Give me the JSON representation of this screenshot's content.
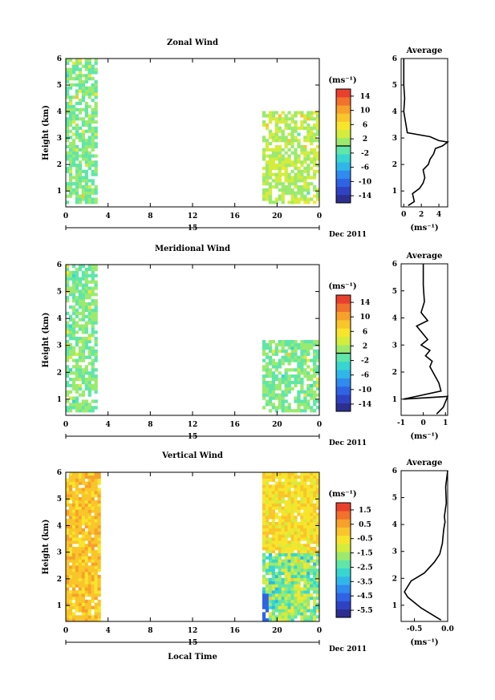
{
  "panels": [
    {
      "title": "Zonal Wind",
      "ylabel": "Height (km)",
      "y_ticks": [
        "1",
        "2",
        "3",
        "4",
        "5",
        "6"
      ],
      "x_ticks": [
        "0",
        "4",
        "8",
        "12",
        "16",
        "20",
        "0"
      ],
      "day_label": "15",
      "date_label": "Dec 2011",
      "xlabel": "",
      "colorbar": {
        "unit": "(ms⁻¹)",
        "ticks": [
          "14",
          "10",
          "6",
          "2",
          "-2",
          "-6",
          "-10",
          "-14"
        ]
      },
      "profile": {
        "title": "Average",
        "x_ticks": [
          "0",
          "2",
          "4"
        ],
        "y_ticks": [
          "1",
          "2",
          "3",
          "4",
          "5",
          "6"
        ],
        "xlabel": "(ms⁻¹)"
      }
    },
    {
      "title": "Meridional Wind",
      "ylabel": "Height (km)",
      "y_ticks": [
        "1",
        "2",
        "3",
        "4",
        "5",
        "6"
      ],
      "x_ticks": [
        "0",
        "4",
        "8",
        "12",
        "16",
        "20",
        "0"
      ],
      "day_label": "15",
      "date_label": "Dec 2011",
      "xlabel": "",
      "colorbar": {
        "unit": "(ms⁻¹)",
        "ticks": [
          "14",
          "10",
          "6",
          "2",
          "-2",
          "-6",
          "-10",
          "-14"
        ]
      },
      "profile": {
        "title": "Average",
        "x_ticks": [
          "-1",
          "0",
          "1"
        ],
        "y_ticks": [
          "1",
          "2",
          "3",
          "4",
          "5",
          "6"
        ],
        "xlabel": "(ms⁻¹)"
      }
    },
    {
      "title": "Vertical Wind",
      "ylabel": "Height (km)",
      "y_ticks": [
        "1",
        "2",
        "3",
        "4",
        "5",
        "6"
      ],
      "x_ticks": [
        "0",
        "4",
        "8",
        "12",
        "16",
        "20",
        "0"
      ],
      "day_label": "15",
      "date_label": "Dec 2011",
      "xlabel": "Local Time",
      "colorbar": {
        "unit": "(ms⁻¹)",
        "ticks": [
          "1.5",
          "0.5",
          "-0.5",
          "-1.5",
          "-2.5",
          "-3.5",
          "-4.5",
          "-5.5"
        ]
      },
      "profile": {
        "title": "Average",
        "x_ticks": [
          "-0.5",
          "0.0"
        ],
        "y_ticks": [
          "1",
          "2",
          "3",
          "4",
          "5",
          "6"
        ],
        "xlabel": "(ms⁻¹)"
      }
    }
  ],
  "chart_data": [
    {
      "type": "heatmap",
      "title": "Zonal Wind",
      "ylabel": "Height (km)",
      "x_unit": "hour local time",
      "xlim": [
        0,
        24
      ],
      "ylim": [
        0.4,
        6.0
      ],
      "date": "15 Dec 2011",
      "data_blocks": [
        {
          "x_range": [
            0,
            3
          ],
          "y_range": [
            0.5,
            6.0
          ],
          "typical_value": 0,
          "note": "patchy, mostly -2 to 2"
        },
        {
          "x_range": [
            18.6,
            24
          ],
          "y_range": [
            0.5,
            4.0
          ],
          "typical_value": 2,
          "note": "mostly 2 to 8, isolated up to 12"
        }
      ],
      "color_scale": {
        "min": -16,
        "max": 16,
        "contour": 0
      }
    },
    {
      "type": "line",
      "title": "Average",
      "xlabel": "(ms⁻¹)",
      "ylabel": "Height (km)",
      "xlim": [
        -0.3,
        5
      ],
      "ylim": [
        0.4,
        6
      ],
      "x": [
        0.5,
        1.2,
        1.0,
        1.8,
        2.2,
        2.4,
        2.2,
        2.8,
        3.0,
        3.4,
        3.6,
        4.4,
        5.0,
        4.0,
        3.0,
        0.4,
        0.2,
        0.0,
        0.1,
        0.0,
        0.0
      ],
      "y": [
        0.45,
        0.6,
        0.9,
        1.1,
        1.3,
        1.5,
        1.8,
        2.0,
        2.2,
        2.4,
        2.6,
        2.7,
        2.85,
        2.9,
        3.05,
        3.2,
        3.6,
        4.0,
        4.5,
        5.0,
        6.0
      ]
    },
    {
      "type": "heatmap",
      "title": "Meridional Wind",
      "ylabel": "Height (km)",
      "x_unit": "hour local time",
      "xlim": [
        0,
        24
      ],
      "ylim": [
        0.4,
        6.0
      ],
      "date": "15 Dec 2011",
      "data_blocks": [
        {
          "x_range": [
            0,
            3
          ],
          "y_range": [
            0.5,
            6.0
          ],
          "typical_value": 0,
          "note": "mostly -2 to 2"
        },
        {
          "x_range": [
            18.6,
            24
          ],
          "y_range": [
            0.5,
            3.2
          ],
          "typical_value": 0,
          "note": "mostly -2 to 4, some -6"
        }
      ],
      "color_scale": {
        "min": -16,
        "max": 16,
        "contour": 0
      }
    },
    {
      "type": "line",
      "title": "Average",
      "xlabel": "(ms⁻¹)",
      "ylabel": "Height (km)",
      "xlim": [
        -1,
        1.1
      ],
      "ylim": [
        0.4,
        6
      ],
      "x": [
        0.6,
        0.9,
        1.1,
        -0.9,
        0.8,
        0.7,
        0.5,
        0.3,
        0.4,
        0.1,
        0.3,
        -0.1,
        0.2,
        0.0,
        -0.3,
        0.2,
        -0.1,
        0.05,
        0.0,
        0.0
      ],
      "y": [
        0.45,
        0.7,
        1.1,
        1.0,
        1.3,
        1.6,
        1.9,
        2.2,
        2.4,
        2.6,
        2.8,
        3.0,
        3.2,
        3.4,
        3.7,
        3.9,
        4.2,
        4.6,
        5.2,
        6.0
      ]
    },
    {
      "type": "heatmap",
      "title": "Vertical Wind",
      "xlabel": "Local Time",
      "ylabel": "Height (km)",
      "x_unit": "hour local time",
      "xlim": [
        0,
        24
      ],
      "ylim": [
        0.4,
        6.0
      ],
      "date": "15 Dec 2011",
      "data_blocks": [
        {
          "x_range": [
            0,
            3.2
          ],
          "y_range": [
            0.4,
            6.0
          ],
          "typical_value": 0.0,
          "note": "mostly -0.5 to 0.5"
        },
        {
          "x_range": [
            18.6,
            24
          ],
          "y_range": [
            0.4,
            6.0
          ],
          "typical_value": -0.5,
          "note": "near 0 aloft, -1.5 to -3.5 below 3 km"
        }
      ],
      "color_scale": {
        "min": -6,
        "max": 2
      }
    },
    {
      "type": "line",
      "title": "Average",
      "xlabel": "(ms⁻¹)",
      "ylabel": "Height (km)",
      "xlim": [
        -0.7,
        0.0
      ],
      "ylim": [
        0.4,
        6
      ],
      "x": [
        -0.1,
        -0.4,
        -0.6,
        -0.65,
        -0.55,
        -0.35,
        -0.2,
        -0.12,
        -0.08,
        -0.06,
        -0.04,
        -0.05,
        -0.02,
        -0.03,
        0.0
      ],
      "y": [
        0.45,
        0.9,
        1.3,
        1.5,
        1.9,
        2.2,
        2.6,
        2.9,
        3.3,
        3.8,
        4.1,
        4.3,
        4.8,
        5.4,
        6.0
      ]
    }
  ]
}
